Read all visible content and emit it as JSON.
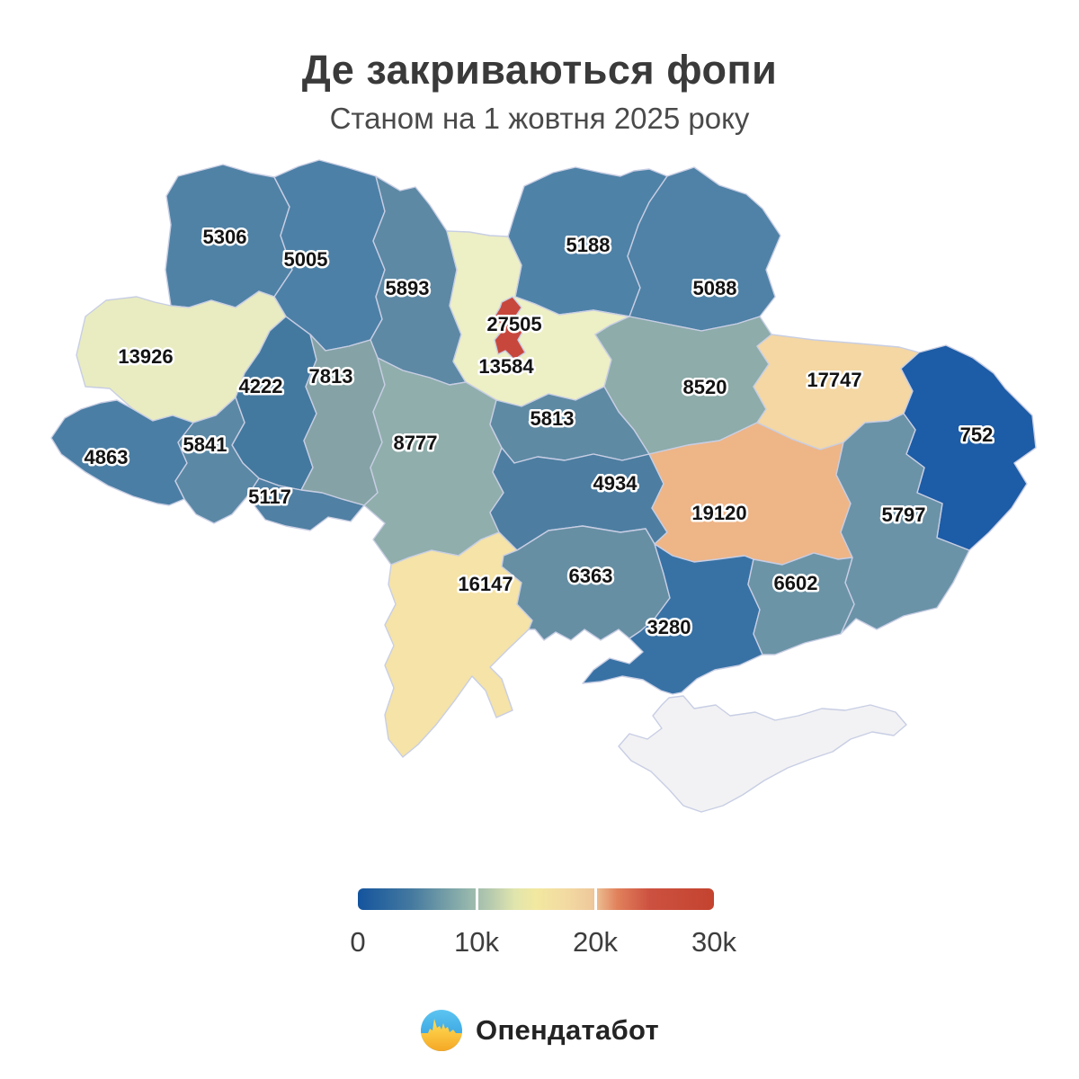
{
  "title": "Де закриваються фопи",
  "subtitle": "Станом на 1 жовтня 2025 року",
  "footer": {
    "brand": "Опендатабот"
  },
  "chart_data": {
    "type": "choropleth",
    "title": "Де закриваються фопи",
    "subtitle": "Станом на 1 жовтня 2025 року",
    "legend": {
      "min": 0,
      "max": 30000,
      "ticks": [
        "0",
        "10k",
        "20k",
        "30k"
      ],
      "tick_positions_pct": [
        0,
        33.33,
        66.67,
        100
      ],
      "gradient_stops": [
        "#14549e 0%",
        "#44799f 15%",
        "#8fb2ab 30%",
        "#b5c9ae 37%",
        "#e0e5ad 44%",
        "#f2e8a0 50%",
        "#f3dba2 58%",
        "#eec89b 66%",
        "#e0805b 73%",
        "#cd5140 82%",
        "#c3432f 100%"
      ]
    },
    "regions": [
      {
        "id": "volyn",
        "name": "Волинська",
        "value": 5306,
        "color": "#5082a5"
      },
      {
        "id": "rivne",
        "name": "Рівненська",
        "value": 5005,
        "color": "#4d80a6"
      },
      {
        "id": "zhytomyr",
        "name": "Житомирська",
        "value": 5893,
        "color": "#5d89a5"
      },
      {
        "id": "chernihiv",
        "name": "Чернігівська",
        "value": 5188,
        "color": "#4f82a7"
      },
      {
        "id": "sumy",
        "name": "Сумська",
        "value": 5088,
        "color": "#4f82a6"
      },
      {
        "id": "lviv",
        "name": "Львівська",
        "value": 13926,
        "color": "#e9ecc0"
      },
      {
        "id": "ternopil",
        "name": "Тернопільська",
        "value": 4222,
        "color": "#44799f"
      },
      {
        "id": "khmelnytskyi",
        "name": "Хмельницька",
        "value": 7813,
        "color": "#85a3a6"
      },
      {
        "id": "kyiv_oblast",
        "name": "Київська",
        "value": 13584,
        "color": "#edefc5"
      },
      {
        "id": "poltava",
        "name": "Полтавська",
        "value": 8520,
        "color": "#8dacaa"
      },
      {
        "id": "kharkiv",
        "name": "Харківська",
        "value": 17747,
        "color": "#f4d7a3"
      },
      {
        "id": "luhansk",
        "name": "Луганська",
        "value": 752,
        "color": "#1d5ca6"
      },
      {
        "id": "zakarpattia",
        "name": "Закарпатська",
        "value": 4863,
        "color": "#4b7ea4"
      },
      {
        "id": "ivano_frankivsk",
        "name": "Івано-Франківська",
        "value": 5841,
        "color": "#5b88a5"
      },
      {
        "id": "chernivtsi",
        "name": "Чернівецька",
        "value": 5117,
        "color": "#5080a3"
      },
      {
        "id": "vinnytsia",
        "name": "Вінницька",
        "value": 8777,
        "color": "#90aeac"
      },
      {
        "id": "cherkasy",
        "name": "Черкаська",
        "value": 5813,
        "color": "#5e8aa4"
      },
      {
        "id": "kirovohrad",
        "name": "Кіровоградська",
        "value": 4934,
        "color": "#4d7ea1"
      },
      {
        "id": "dnipro",
        "name": "Дніпропетровська",
        "value": 19120,
        "color": "#eeb587"
      },
      {
        "id": "donetsk",
        "name": "Донецька",
        "value": 5797,
        "color": "#6b93a8"
      },
      {
        "id": "odesa",
        "name": "Одеська",
        "value": 16147,
        "color": "#f5e3a7"
      },
      {
        "id": "mykolaiv",
        "name": "Миколаївська",
        "value": 6363,
        "color": "#678fa4"
      },
      {
        "id": "kherson",
        "name": "Херсонська",
        "value": 3280,
        "color": "#3872a5"
      },
      {
        "id": "zaporizhzhia",
        "name": "Запорізька",
        "value": 6602,
        "color": "#6c94a7"
      },
      {
        "id": "crimea",
        "name": "АР Крим",
        "value": null,
        "color": "#f2f2f4"
      },
      {
        "id": "kyiv_city",
        "name": "м. Київ",
        "value": 27505,
        "color": "#c8473c"
      }
    ]
  }
}
